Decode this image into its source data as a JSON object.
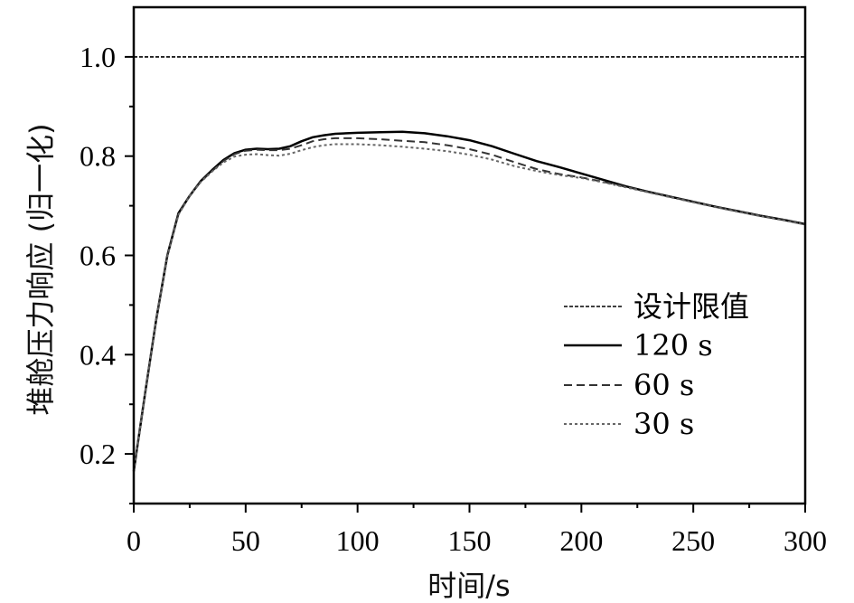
{
  "chart_data": {
    "type": "line",
    "title": "",
    "xlabel": "时间/s",
    "ylabel": "堆舱压力响应 (归一化)",
    "xlim": [
      0,
      300
    ],
    "ylim": [
      0.1,
      1.1
    ],
    "xticks": [
      0,
      50,
      100,
      150,
      200,
      250,
      300
    ],
    "yticks": [
      0.2,
      0.4,
      0.6,
      0.8,
      1.0
    ],
    "xtick_labels": [
      "0",
      "50",
      "100",
      "150",
      "200",
      "250",
      "300"
    ],
    "ytick_labels": [
      "0.2",
      "0.4",
      "0.6",
      "0.8",
      "1.0"
    ],
    "grid": false,
    "legend_position": "lower-right",
    "series": [
      {
        "name": "设计限值",
        "style": "dashed-fine",
        "color": "#000000",
        "x": [
          0,
          300
        ],
        "y": [
          1.0,
          1.0
        ]
      },
      {
        "name": "120 s",
        "style": "solid",
        "color": "#000000",
        "x": [
          0,
          5,
          10,
          15,
          20,
          25,
          30,
          35,
          40,
          45,
          50,
          55,
          60,
          65,
          70,
          75,
          80,
          85,
          90,
          100,
          110,
          120,
          130,
          140,
          150,
          160,
          170,
          180,
          190,
          200,
          210,
          220,
          230,
          240,
          250,
          260,
          270,
          280,
          290,
          300
        ],
        "y": [
          0.165,
          0.32,
          0.47,
          0.6,
          0.685,
          0.72,
          0.75,
          0.772,
          0.792,
          0.806,
          0.813,
          0.815,
          0.814,
          0.815,
          0.82,
          0.83,
          0.838,
          0.842,
          0.845,
          0.847,
          0.848,
          0.849,
          0.846,
          0.84,
          0.832,
          0.82,
          0.805,
          0.79,
          0.778,
          0.765,
          0.752,
          0.739,
          0.728,
          0.718,
          0.708,
          0.698,
          0.689,
          0.68,
          0.672,
          0.663
        ]
      },
      {
        "name": "60 s",
        "style": "dashed",
        "color": "#333333",
        "x": [
          0,
          5,
          10,
          15,
          20,
          25,
          30,
          35,
          40,
          45,
          50,
          55,
          60,
          65,
          70,
          75,
          80,
          85,
          90,
          100,
          110,
          120,
          130,
          140,
          150,
          160,
          170,
          180,
          190,
          200,
          210,
          220,
          230,
          240,
          250,
          260,
          270,
          280,
          290,
          300
        ],
        "y": [
          0.165,
          0.32,
          0.47,
          0.6,
          0.683,
          0.72,
          0.749,
          0.77,
          0.79,
          0.804,
          0.811,
          0.813,
          0.812,
          0.812,
          0.815,
          0.822,
          0.83,
          0.834,
          0.836,
          0.836,
          0.834,
          0.831,
          0.828,
          0.822,
          0.814,
          0.803,
          0.788,
          0.774,
          0.764,
          0.757,
          0.748,
          0.738,
          0.728,
          0.718,
          0.708,
          0.698,
          0.689,
          0.68,
          0.672,
          0.663
        ]
      },
      {
        "name": "30 s",
        "style": "dotted",
        "color": "#666666",
        "x": [
          0,
          5,
          10,
          15,
          20,
          25,
          30,
          35,
          40,
          45,
          50,
          55,
          60,
          65,
          70,
          75,
          80,
          85,
          90,
          100,
          110,
          120,
          130,
          140,
          150,
          160,
          170,
          180,
          190,
          200,
          210,
          220,
          230,
          240,
          250,
          260,
          270,
          280,
          290,
          300
        ],
        "y": [
          0.165,
          0.32,
          0.47,
          0.598,
          0.682,
          0.72,
          0.748,
          0.769,
          0.787,
          0.799,
          0.803,
          0.804,
          0.802,
          0.801,
          0.805,
          0.812,
          0.818,
          0.822,
          0.824,
          0.824,
          0.822,
          0.819,
          0.815,
          0.81,
          0.803,
          0.793,
          0.78,
          0.77,
          0.762,
          0.756,
          0.747,
          0.737,
          0.727,
          0.717,
          0.707,
          0.697,
          0.688,
          0.679,
          0.671,
          0.662
        ]
      }
    ]
  }
}
